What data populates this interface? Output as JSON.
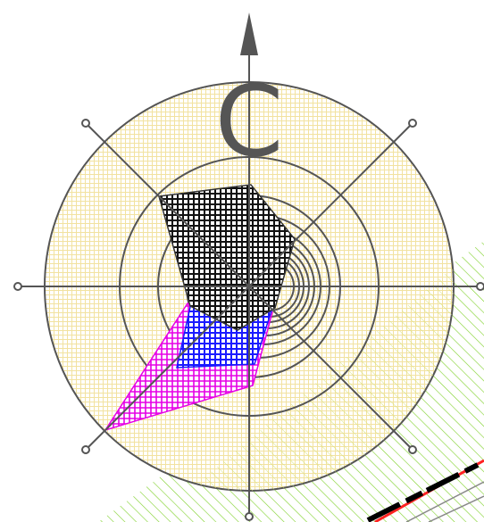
{
  "compass_label": "C",
  "colors": {
    "ring_fill_pattern": "#f5e7a6",
    "ring_stroke": "#555555",
    "axis_stroke": "#555555",
    "dark_region": "#111111",
    "blue_region": "#1a1aff",
    "magenta_region": "#e600e6",
    "hatch_green": "#7fd12a",
    "hatch_yellow": "#d8e27a",
    "stroke_red": "#ff0000",
    "stroke_black": "#000000"
  },
  "icons": [
    "north-arrow-icon",
    "axis-end-bolt-icon"
  ]
}
